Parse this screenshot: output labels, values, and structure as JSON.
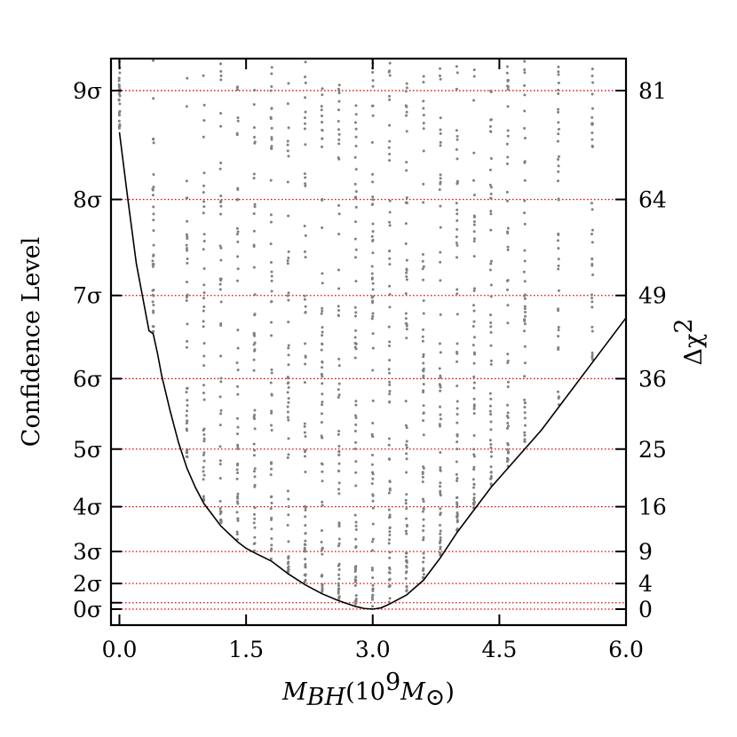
{
  "chart_data": {
    "type": "scatter",
    "xlabel": "M_BH(10^9 M_⊙)",
    "xlabel_parts": {
      "M": "M",
      "sub": "BH",
      "open": "(10",
      "exp": "9",
      "M2": "M",
      "sun": "⊙",
      "close": ")"
    },
    "ylabel_left": "Confidence Level",
    "ylabel_right": "Δχ²",
    "ylabel_right_parts": {
      "base": "Δχ",
      "exp": "2"
    },
    "xlim": [
      -0.1,
      6.0
    ],
    "ylim_dchi2": [
      -2.5,
      86
    ],
    "x_ticks": [
      {
        "value": 0.0,
        "label": "0.0"
      },
      {
        "value": 1.5,
        "label": "1.5"
      },
      {
        "value": 3.0,
        "label": "3.0"
      },
      {
        "value": 4.5,
        "label": "4.5"
      },
      {
        "value": 6.0,
        "label": "6.0"
      }
    ],
    "sigma_levels": [
      {
        "sigma": 0,
        "dchi2": 0.0,
        "label": "0σ"
      },
      {
        "sigma": 1,
        "dchi2": 1.0,
        "label": ""
      },
      {
        "sigma": 2,
        "dchi2": 4.0,
        "label": "2σ"
      },
      {
        "sigma": 3,
        "dchi2": 9.0,
        "label": "3σ"
      },
      {
        "sigma": 4,
        "dchi2": 16.0,
        "label": "4σ"
      },
      {
        "sigma": 5,
        "dchi2": 25.0,
        "label": "5σ"
      },
      {
        "sigma": 6,
        "dchi2": 36.0,
        "label": "6σ"
      },
      {
        "sigma": 7,
        "dchi2": 49.0,
        "label": "7σ"
      },
      {
        "sigma": 8,
        "dchi2": 64.0,
        "label": "8σ"
      },
      {
        "sigma": 9,
        "dchi2": 81.0,
        "label": "9σ"
      }
    ],
    "right_ticks": [
      {
        "value": 0,
        "label": "0"
      },
      {
        "value": 4,
        "label": "4"
      },
      {
        "value": 9,
        "label": "9"
      },
      {
        "value": 16,
        "label": "16"
      },
      {
        "value": 25,
        "label": "25"
      },
      {
        "value": 36,
        "label": "36"
      },
      {
        "value": 49,
        "label": "49"
      },
      {
        "value": 64,
        "label": "64"
      },
      {
        "value": 81,
        "label": "81"
      }
    ],
    "min_curve": {
      "x": [
        0.0,
        0.1,
        0.2,
        0.3,
        0.35,
        0.4,
        0.45,
        0.5,
        0.6,
        0.7,
        0.8,
        0.9,
        1.0,
        1.2,
        1.4,
        1.5,
        1.6,
        1.8,
        2.0,
        2.2,
        2.4,
        2.6,
        2.8,
        2.9,
        3.0,
        3.1,
        3.2,
        3.4,
        3.6,
        3.8,
        4.0,
        4.2,
        4.4,
        4.6,
        4.8,
        5.0,
        5.2,
        5.4,
        5.6,
        5.8,
        6.0
      ],
      "dchi2": [
        74.5,
        64.0,
        54.0,
        47.0,
        43.5,
        43.0,
        40.0,
        36.5,
        31.0,
        26.0,
        22.0,
        19.0,
        16.5,
        13.0,
        10.5,
        9.5,
        8.8,
        7.5,
        5.5,
        3.8,
        2.4,
        1.3,
        0.4,
        0.1,
        0.0,
        0.2,
        0.8,
        2.2,
        4.5,
        8.0,
        12.0,
        15.5,
        19.0,
        22.0,
        25.0,
        28.0,
        31.5,
        35.0,
        38.5,
        42.0,
        45.5
      ]
    },
    "scatter_columns_x": [
      0.0,
      0.4,
      0.8,
      1.0,
      1.2,
      1.4,
      1.6,
      1.8,
      2.0,
      2.2,
      2.4,
      2.6,
      2.8,
      3.0,
      3.2,
      3.4,
      3.6,
      3.8,
      4.0,
      4.2,
      4.4,
      4.6,
      4.8,
      5.2,
      5.6
    ],
    "colors": {
      "scatter": "#808080",
      "curve": "#000000",
      "sigma_lines": "#e00000",
      "axes": "#000000"
    }
  }
}
